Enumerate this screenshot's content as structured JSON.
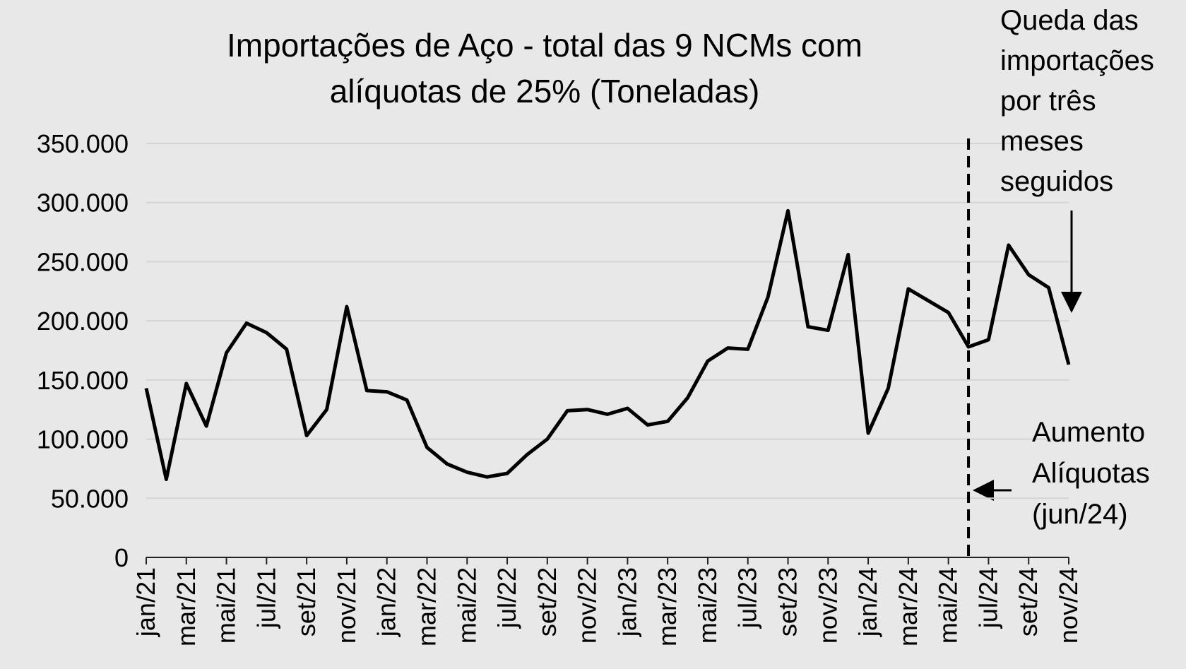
{
  "chart_data": {
    "type": "line",
    "title": [
      "Importações de Aço - total das 9 NCMs com",
      "alíquotas de 25% (Toneladas)"
    ],
    "categories": [
      "jan/21",
      null,
      "mar/21",
      null,
      "mai/21",
      null,
      "jul/21",
      null,
      "set/21",
      null,
      "nov/21",
      null,
      "jan/22",
      null,
      "mar/22",
      null,
      "mai/22",
      null,
      "jul/22",
      null,
      "set/22",
      null,
      "nov/22",
      null,
      "jan/23",
      null,
      "mar/23",
      null,
      "mai/23",
      null,
      "jul/23",
      null,
      "set/23",
      null,
      "nov/23",
      null,
      "jan/24",
      null,
      "mar/24",
      null,
      "mai/24",
      null,
      "jul/24",
      null,
      "set/24",
      null,
      "nov/24"
    ],
    "series": [
      {
        "color": "#000000",
        "values": [
          143000,
          66000,
          147000,
          111000,
          173000,
          198000,
          190000,
          176000,
          103000,
          125000,
          212000,
          141000,
          140000,
          133000,
          93000,
          79000,
          72000,
          68000,
          71000,
          87000,
          100000,
          124000,
          125000,
          121000,
          126000,
          112000,
          115000,
          135000,
          166000,
          177000,
          176000,
          220000,
          293000,
          195000,
          192000,
          256000,
          105000,
          143000,
          227000,
          217000,
          207000,
          178000,
          184000,
          264000,
          239000,
          228000,
          163000
        ]
      }
    ],
    "ylim": [
      0,
      350000
    ],
    "yticks": [
      0,
      {
        "value": 50000,
        "label": "50.000"
      },
      {
        "value": 100000,
        "label": "100.000"
      },
      {
        "value": 150000,
        "label": "150.000"
      },
      {
        "value": 200000,
        "label": "200.000"
      },
      {
        "value": 250000,
        "label": "250.000"
      },
      {
        "value": 300000,
        "label": "300.000"
      },
      {
        "value": 350000,
        "label": "350.000"
      }
    ],
    "grid": true,
    "annotations": [
      {
        "lines": [
          "Queda das",
          "importações",
          "por três",
          "meses",
          "seguidos"
        ]
      },
      {
        "lines": [
          "Aumento",
          "Alíquotas",
          "(jun/24)"
        ]
      }
    ]
  }
}
